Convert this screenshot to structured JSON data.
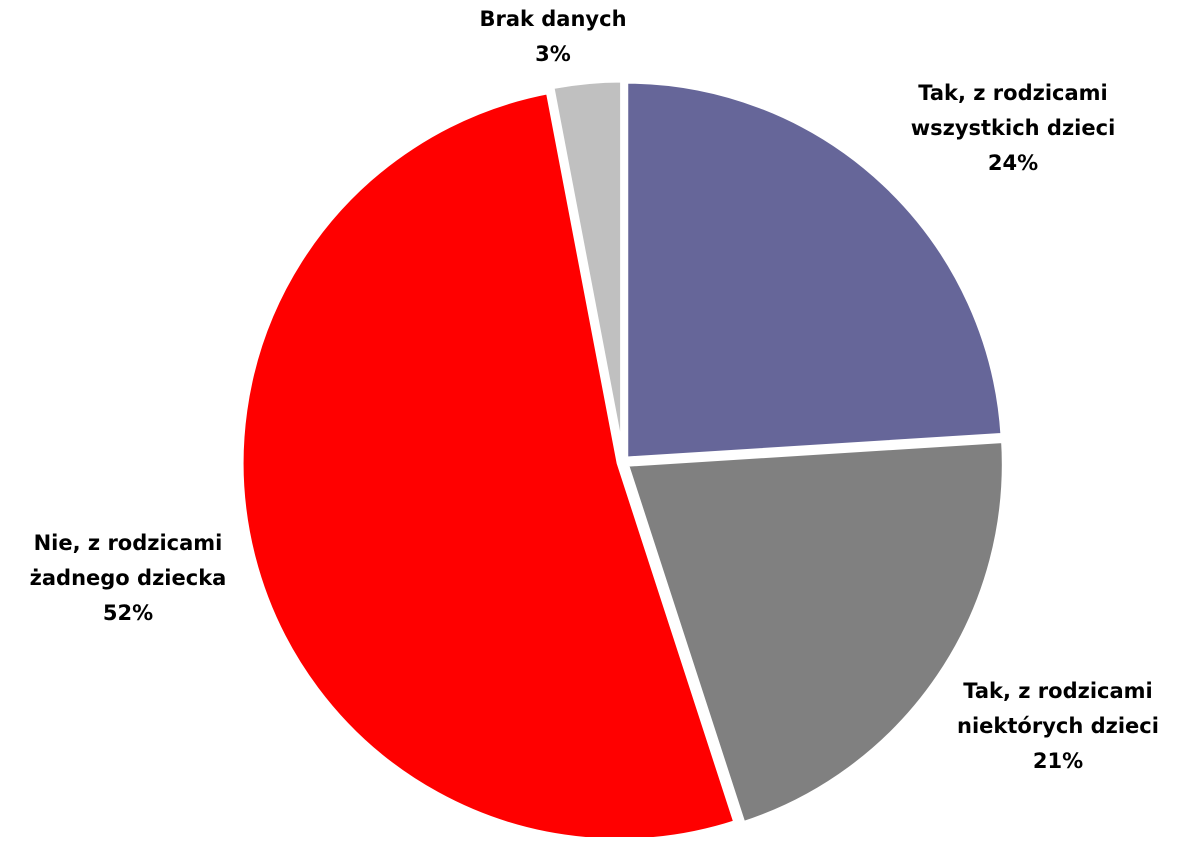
{
  "chart_data": {
    "type": "pie",
    "title": "",
    "slices": [
      {
        "label_lines": [
          "Tak, z rodzicami",
          "wszystkich dzieci"
        ],
        "value": 24,
        "value_label": "24%",
        "color": "#666699"
      },
      {
        "label_lines": [
          "Tak, z rodzicami",
          "niektórych dzieci"
        ],
        "value": 21,
        "value_label": "21%",
        "color": "#808080"
      },
      {
        "label_lines": [
          "Nie, z rodzicami",
          "żadnego dziecka"
        ],
        "value": 52,
        "value_label": "52%",
        "color": "#FF0000"
      },
      {
        "label_lines": [
          "Brak danych"
        ],
        "value": 3,
        "value_label": "3%",
        "color": "#C0C0C0"
      }
    ],
    "start_angle": "12 o'clock",
    "direction": "clockwise",
    "exploded": true,
    "legend": "none"
  }
}
